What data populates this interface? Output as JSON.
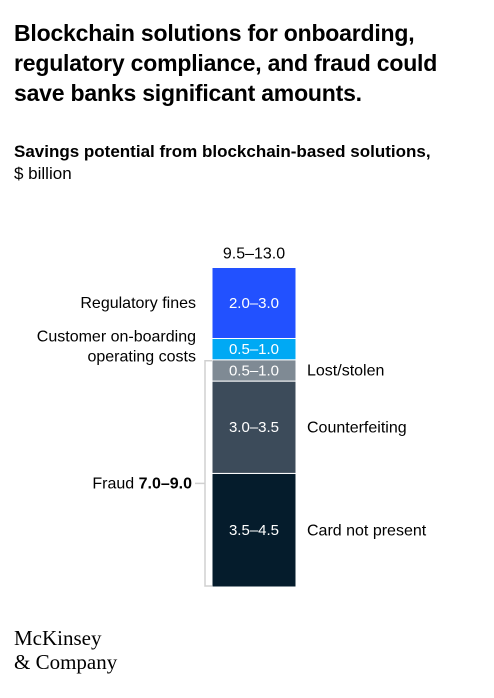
{
  "title": "Blockchain solutions for onboarding, regulatory compliance, and fraud could save banks significant amounts.",
  "subtitle": "Savings potential from blockchain-based solutions,",
  "unit": "$ billion",
  "logo": {
    "line1": "McKinsey",
    "line2": "& Company"
  },
  "colors": {
    "regulatory": "#2251ff",
    "onboarding": "#00a9f4",
    "lost": "#7f8a94",
    "counterfeit": "#3c4b5a",
    "cardnotpresent": "#051c2c",
    "bracket": "#d0d0d0"
  },
  "chart_data": {
    "type": "bar",
    "stacked": true,
    "total_label": "9.5–13.0",
    "segments": [
      {
        "key": "cardnotpresent",
        "label": "Card not present",
        "value_label": "3.5–4.5",
        "low": 3.5,
        "high": 4.5,
        "side": "right",
        "group": "fraud"
      },
      {
        "key": "counterfeit",
        "label": "Counterfeiting",
        "value_label": "3.0–3.5",
        "low": 3.0,
        "high": 3.5,
        "side": "right",
        "group": "fraud"
      },
      {
        "key": "lost",
        "label": "Lost/stolen",
        "value_label": "0.5–1.0",
        "low": 0.5,
        "high": 1.0,
        "side": "right",
        "group": "fraud"
      },
      {
        "key": "onboarding",
        "label": "Customer on-boarding\noperating costs",
        "value_label": "0.5–1.0",
        "low": 0.5,
        "high": 1.0,
        "side": "left"
      },
      {
        "key": "regulatory",
        "label": "Regulatory fines",
        "value_label": "2.0–3.0",
        "low": 2.0,
        "high": 3.0,
        "side": "left"
      }
    ],
    "groups": [
      {
        "key": "fraud",
        "label": "Fraud",
        "value_label": "7.0–9.0"
      }
    ]
  }
}
